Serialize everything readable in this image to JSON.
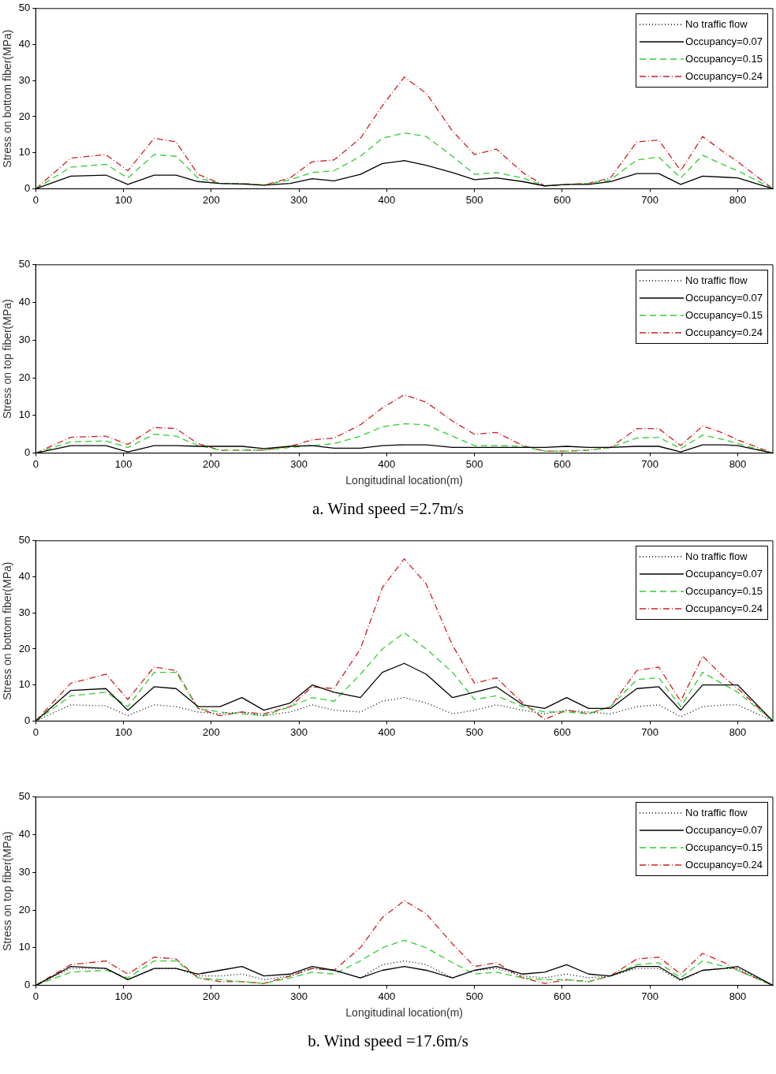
{
  "chart_data": [
    {
      "type": "line",
      "ylabel": "Stress on bottom fiber(MPa)",
      "xlim": [
        0,
        840
      ],
      "xticks": [
        0,
        100,
        200,
        300,
        400,
        500,
        600,
        700,
        800
      ],
      "ylim": [
        0,
        50
      ],
      "yticks": [
        0,
        10,
        20,
        30,
        40,
        50
      ],
      "legend": "top right",
      "marker": "none",
      "x": [
        0,
        40,
        80,
        105,
        135,
        160,
        185,
        210,
        235,
        260,
        290,
        315,
        340,
        370,
        395,
        420,
        445,
        475,
        500,
        525,
        555,
        580,
        605,
        630,
        655,
        685,
        710,
        735,
        760,
        785,
        800,
        840
      ],
      "series": [
        {
          "name": "No traffic flow",
          "color": "#000000",
          "line_style": "dotted",
          "values": [
            0,
            0,
            0,
            0,
            0,
            0,
            0,
            0,
            0,
            0,
            0,
            0,
            0,
            0,
            0,
            0,
            0,
            0,
            0,
            0,
            0,
            0,
            0,
            0,
            0,
            0,
            0,
            0,
            0,
            0,
            0,
            0
          ]
        },
        {
          "name": "Occupancy=0.07",
          "color": "#000000",
          "line_style": "solid",
          "values": [
            0,
            3.5,
            3.8,
            1.2,
            3.8,
            3.8,
            2,
            1.5,
            1.3,
            1,
            1.5,
            2.8,
            2.2,
            4,
            7,
            7.8,
            6.5,
            4.5,
            2.5,
            3,
            2,
            0.8,
            1.2,
            1.2,
            2,
            4.2,
            4.2,
            1.2,
            3.5,
            3.2,
            3,
            0
          ]
        },
        {
          "name": "Occupancy=0.15",
          "color": "#33cc33",
          "line_style": "dashed",
          "values": [
            0,
            6,
            6.8,
            3,
            9.5,
            9,
            3,
            1.5,
            1.5,
            1,
            2.5,
            4.5,
            5,
            9,
            14,
            15.5,
            14.5,
            9,
            4,
            4.5,
            3,
            0.8,
            1.2,
            1.5,
            2.5,
            8,
            8.8,
            3,
            9.3,
            6.5,
            5,
            0
          ]
        },
        {
          "name": "Occupancy=0.24",
          "color": "#cc2222",
          "line_style": "dashdot",
          "values": [
            0,
            8.5,
            9.5,
            5,
            14,
            13,
            4,
            1.5,
            1.5,
            1,
            3,
            7.5,
            8,
            14,
            23,
            31,
            26.5,
            16,
            9.5,
            11,
            4.5,
            0.8,
            1.2,
            1.5,
            3,
            13,
            13.5,
            5,
            14.5,
            10,
            7.5,
            0
          ]
        }
      ]
    },
    {
      "type": "line",
      "ylabel": "Stress on top fiber(MPa)",
      "xlabel": "Longitudinal location(m)",
      "annotations": [
        "a. Wind speed =2.7m/s"
      ],
      "xlim": [
        0,
        840
      ],
      "xticks": [
        0,
        100,
        200,
        300,
        400,
        500,
        600,
        700,
        800
      ],
      "ylim": [
        0,
        50
      ],
      "yticks": [
        0,
        10,
        20,
        30,
        40,
        50
      ],
      "legend": "top right",
      "marker": "none",
      "x": [
        0,
        40,
        80,
        105,
        135,
        160,
        185,
        210,
        235,
        260,
        290,
        315,
        340,
        370,
        395,
        420,
        445,
        475,
        500,
        525,
        555,
        580,
        605,
        630,
        655,
        685,
        710,
        735,
        760,
        785,
        800,
        840
      ],
      "series": [
        {
          "name": "No traffic flow",
          "color": "#000000",
          "line_style": "dotted",
          "values": [
            0,
            0,
            0,
            0,
            0,
            0,
            0,
            0,
            0,
            0,
            0,
            0,
            0,
            0,
            0,
            0,
            0,
            0,
            0,
            0,
            0,
            0,
            0,
            0,
            0,
            0,
            0,
            0,
            0,
            0,
            0,
            0
          ]
        },
        {
          "name": "Occupancy=0.07",
          "color": "#000000",
          "line_style": "solid",
          "values": [
            0,
            2,
            2,
            0.3,
            2,
            2,
            1.8,
            1.8,
            1.8,
            1.2,
            1.8,
            2,
            1.3,
            1.3,
            2,
            2.2,
            2.2,
            1.5,
            1.5,
            1.5,
            1.5,
            1.5,
            1.8,
            1.5,
            1.5,
            1.8,
            1.8,
            0.3,
            2.2,
            2.2,
            2,
            0
          ]
        },
        {
          "name": "Occupancy=0.15",
          "color": "#33cc33",
          "line_style": "dashed",
          "values": [
            0,
            3,
            3.2,
            1.5,
            5,
            4.5,
            2,
            0.8,
            0.8,
            0.8,
            1.5,
            2,
            2.5,
            4.5,
            7,
            7.8,
            7.5,
            4.5,
            2,
            2,
            1.8,
            0.5,
            0.5,
            0.8,
            1.5,
            4,
            4.2,
            1.2,
            4.8,
            3.5,
            2.5,
            0
          ]
        },
        {
          "name": "Occupancy=0.24",
          "color": "#cc2222",
          "line_style": "dashdot",
          "values": [
            0,
            4.2,
            4.5,
            2.3,
            6.8,
            6.5,
            2.5,
            0.8,
            0.8,
            0.8,
            1.8,
            3.5,
            4,
            7.5,
            12,
            15.5,
            13.5,
            8.5,
            5,
            5.5,
            2,
            0.5,
            0.5,
            0.8,
            1.5,
            6.5,
            6.5,
            2,
            7.2,
            5.2,
            3.5,
            0
          ]
        }
      ]
    },
    {
      "type": "line",
      "ylabel": "Stress on bottom fiber(MPa)",
      "xlim": [
        0,
        840
      ],
      "xticks": [
        0,
        100,
        200,
        300,
        400,
        500,
        600,
        700,
        800
      ],
      "ylim": [
        0,
        50
      ],
      "yticks": [
        0,
        10,
        20,
        30,
        40,
        50
      ],
      "legend": "top right",
      "marker": "none",
      "x": [
        0,
        40,
        80,
        105,
        135,
        160,
        185,
        210,
        235,
        260,
        290,
        315,
        340,
        370,
        395,
        420,
        445,
        475,
        500,
        525,
        555,
        580,
        605,
        630,
        655,
        685,
        710,
        735,
        760,
        785,
        800,
        840
      ],
      "series": [
        {
          "name": "No traffic flow",
          "color": "#000000",
          "line_style": "dotted",
          "values": [
            0,
            4.5,
            4.2,
            1.5,
            4.5,
            4,
            2.5,
            2,
            2.5,
            1.5,
            2.5,
            4.5,
            3,
            2.5,
            5.5,
            6.5,
            5,
            2,
            3,
            4.5,
            3,
            2,
            3,
            2.5,
            2,
            4,
            4.5,
            1.2,
            4,
            4.5,
            4.5,
            0
          ]
        },
        {
          "name": "Occupancy=0.07",
          "color": "#000000",
          "line_style": "solid",
          "values": [
            0,
            8.5,
            9,
            3,
            9.5,
            9,
            4,
            4,
            6.5,
            3,
            5,
            10,
            8,
            6.5,
            13.5,
            16,
            13,
            6.5,
            8,
            9.5,
            4.5,
            3.5,
            6.5,
            3.5,
            3.5,
            9,
            9.5,
            3,
            10,
            10,
            10,
            0
          ]
        },
        {
          "name": "Occupancy=0.15",
          "color": "#33cc33",
          "line_style": "dashed",
          "values": [
            0,
            7,
            8,
            4,
            13.5,
            13.5,
            3.5,
            2.5,
            2,
            1.5,
            4,
            6.5,
            5.5,
            13,
            20,
            24.5,
            20,
            13.5,
            6,
            7,
            4,
            2.5,
            2.5,
            2,
            4,
            11.5,
            12,
            4,
            13.5,
            10,
            8,
            0
          ]
        },
        {
          "name": "Occupancy=0.24",
          "color": "#cc2222",
          "line_style": "dashdot",
          "values": [
            0,
            10.5,
            13,
            6,
            15,
            14,
            3.5,
            1.5,
            2.5,
            2,
            4,
            9.5,
            9,
            20,
            37,
            45,
            38,
            21,
            10.5,
            12,
            5,
            0.5,
            3,
            2,
            4,
            14,
            15,
            5.5,
            18,
            12,
            9,
            0
          ]
        }
      ]
    },
    {
      "type": "line",
      "ylabel": "Stress on top fiber(MPa)",
      "xlabel": "Longitudinal location(m)",
      "annotations": [
        "b. Wind speed =17.6m/s"
      ],
      "xlim": [
        0,
        840
      ],
      "xticks": [
        0,
        100,
        200,
        300,
        400,
        500,
        600,
        700,
        800
      ],
      "ylim": [
        0,
        50
      ],
      "yticks": [
        0,
        10,
        20,
        30,
        40,
        50
      ],
      "legend": "top right",
      "marker": "none",
      "x": [
        0,
        40,
        80,
        105,
        135,
        160,
        185,
        210,
        235,
        260,
        290,
        315,
        340,
        370,
        395,
        420,
        445,
        475,
        500,
        525,
        555,
        580,
        605,
        630,
        655,
        685,
        710,
        735,
        760,
        785,
        800,
        840
      ],
      "series": [
        {
          "name": "No traffic flow",
          "color": "#000000",
          "line_style": "dotted",
          "values": [
            0,
            4.5,
            4.5,
            1.5,
            4.5,
            4.5,
            2.5,
            2.5,
            3,
            1.5,
            2.5,
            4.5,
            4,
            2,
            5.5,
            6.5,
            5.5,
            2,
            4,
            4.5,
            2.5,
            2,
            3,
            2,
            2.5,
            4.5,
            4.5,
            1.2,
            4,
            4.5,
            4.5,
            0
          ]
        },
        {
          "name": "Occupancy=0.07",
          "color": "#000000",
          "line_style": "solid",
          "values": [
            0,
            5,
            4.5,
            1.5,
            4.5,
            4.5,
            3,
            4,
            5,
            2.5,
            3,
            5,
            4,
            2,
            4,
            5,
            4,
            2,
            4,
            5,
            3,
            3.5,
            5.5,
            3,
            2.5,
            5,
            5,
            1.5,
            4,
            4.5,
            5,
            0
          ]
        },
        {
          "name": "Occupancy=0.15",
          "color": "#33cc33",
          "line_style": "dashed",
          "values": [
            0,
            3.5,
            4,
            2,
            6.5,
            6.5,
            2,
            1.5,
            1,
            0.5,
            2,
            3.5,
            3,
            6.5,
            10,
            12,
            10,
            6,
            3,
            3.5,
            2,
            1.5,
            1.5,
            1,
            2.5,
            5.5,
            6,
            2,
            6.5,
            5,
            4,
            0
          ]
        },
        {
          "name": "Occupancy=0.24",
          "color": "#cc2222",
          "line_style": "dashdot",
          "values": [
            0,
            5.5,
            6.5,
            3,
            7.5,
            7,
            2,
            1,
            1,
            0.5,
            2.5,
            4.5,
            4,
            10,
            18,
            22.5,
            19,
            11,
            5,
            6,
            2,
            0.5,
            1.5,
            1,
            2.5,
            7,
            7.5,
            3,
            8.5,
            6,
            4,
            0
          ]
        }
      ]
    }
  ]
}
